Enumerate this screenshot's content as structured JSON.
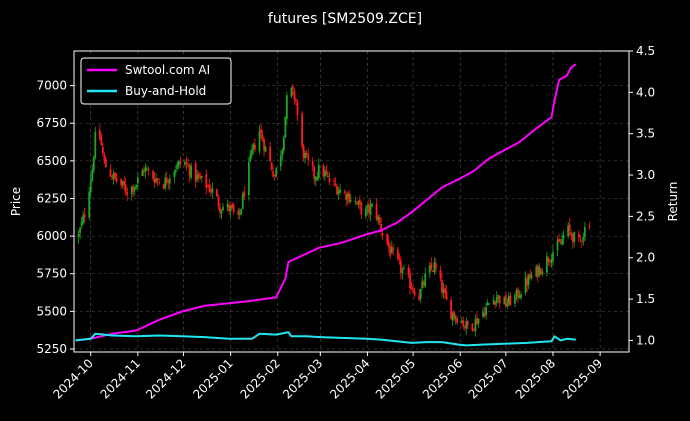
{
  "chart_data": {
    "type": "line",
    "title": "futures [SM2509.ZCE]",
    "ylabel_left": "Price",
    "ylabel_right": "Return",
    "x_ticks": [
      "2024-10",
      "2024-11",
      "2024-12",
      "2025-01",
      "2025-02",
      "2025-03",
      "2025-04",
      "2025-05",
      "2025-06",
      "2025-07",
      "2025-08",
      "2025-09"
    ],
    "x_tick_dates": [
      "2024-10-01",
      "2024-11-01",
      "2024-12-01",
      "2025-01-01",
      "2025-02-01",
      "2025-03-01",
      "2025-04-01",
      "2025-05-01",
      "2025-06-01",
      "2025-07-01",
      "2025-08-01",
      "2025-09-01"
    ],
    "x_range": [
      "2024-09-20",
      "2025-09-20"
    ],
    "ylim_left": [
      5230,
      7230
    ],
    "yticks_left": [
      5250,
      5500,
      5750,
      6000,
      6250,
      6500,
      6750,
      7000
    ],
    "ylim_right": [
      0.86,
      4.5
    ],
    "yticks_right": [
      1.0,
      1.5,
      2.0,
      2.5,
      3.0,
      3.5,
      4.0,
      4.5
    ],
    "grid": true,
    "legend_position": "upper-left",
    "colors": {
      "background": "#000000",
      "axis": "#ffffff",
      "grid": "#555555",
      "up_candle": "#1fa51f",
      "down_candle": "#ff1a1a",
      "strategy_line": "#ff00ff",
      "buyhold_line": "#22e5f2"
    },
    "price_path": [
      [
        "2024-09-23",
        6000
      ],
      [
        "2024-09-27",
        6150
      ],
      [
        "2024-10-02",
        6450
      ],
      [
        "2024-10-05",
        6750
      ],
      [
        "2024-10-08",
        6600
      ],
      [
        "2024-10-10",
        6480
      ],
      [
        "2024-10-15",
        6400
      ],
      [
        "2024-10-20",
        6350
      ],
      [
        "2024-10-25",
        6300
      ],
      [
        "2024-10-31",
        6350
      ],
      [
        "2024-11-05",
        6450
      ],
      [
        "2024-11-10",
        6400
      ],
      [
        "2024-11-18",
        6350
      ],
      [
        "2024-11-25",
        6450
      ],
      [
        "2024-12-01",
        6500
      ],
      [
        "2024-12-08",
        6400
      ],
      [
        "2024-12-15",
        6350
      ],
      [
        "2024-12-20",
        6300
      ],
      [
        "2024-12-25",
        6200
      ],
      [
        "2025-01-01",
        6180
      ],
      [
        "2025-01-06",
        6100
      ],
      [
        "2025-01-10",
        6300
      ],
      [
        "2025-01-15",
        6550
      ],
      [
        "2025-01-20",
        6700
      ],
      [
        "2025-01-25",
        6550
      ],
      [
        "2025-01-30",
        6400
      ],
      [
        "2025-02-04",
        6600
      ],
      [
        "2025-02-08",
        7000
      ],
      [
        "2025-02-13",
        6900
      ],
      [
        "2025-02-16",
        6600
      ],
      [
        "2025-02-20",
        6500
      ],
      [
        "2025-02-25",
        6400
      ],
      [
        "2025-03-01",
        6450
      ],
      [
        "2025-03-08",
        6350
      ],
      [
        "2025-03-15",
        6300
      ],
      [
        "2025-03-22",
        6250
      ],
      [
        "2025-03-30",
        6150
      ],
      [
        "2025-04-05",
        6200
      ],
      [
        "2025-04-10",
        6050
      ],
      [
        "2025-04-16",
        5900
      ],
      [
        "2025-04-22",
        5800
      ],
      [
        "2025-04-28",
        5700
      ],
      [
        "2025-05-05",
        5600
      ],
      [
        "2025-05-10",
        5750
      ],
      [
        "2025-05-15",
        5800
      ],
      [
        "2025-05-20",
        5650
      ],
      [
        "2025-05-25",
        5500
      ],
      [
        "2025-06-01",
        5450
      ],
      [
        "2025-06-05",
        5400
      ],
      [
        "2025-06-10",
        5420
      ],
      [
        "2025-06-15",
        5480
      ],
      [
        "2025-06-20",
        5550
      ],
      [
        "2025-06-25",
        5600
      ],
      [
        "2025-07-01",
        5550
      ],
      [
        "2025-07-08",
        5600
      ],
      [
        "2025-07-15",
        5700
      ],
      [
        "2025-07-20",
        5750
      ],
      [
        "2025-07-25",
        5800
      ],
      [
        "2025-08-01",
        5900
      ],
      [
        "2025-08-06",
        5950
      ],
      [
        "2025-08-10",
        6050
      ],
      [
        "2025-08-14",
        6000
      ],
      [
        "2025-08-18",
        5950
      ],
      [
        "2025-08-22",
        6050
      ],
      [
        "2025-08-25",
        6100
      ]
    ],
    "series": [
      {
        "name": "Swtool.com AI",
        "color": "#ff00ff",
        "points": [
          [
            "2024-09-21",
            1.0
          ],
          [
            "2024-10-01",
            1.02
          ],
          [
            "2024-10-15",
            1.08
          ],
          [
            "2024-10-31",
            1.12
          ],
          [
            "2024-11-15",
            1.25
          ],
          [
            "2024-11-30",
            1.35
          ],
          [
            "2024-12-15",
            1.42
          ],
          [
            "2024-12-31",
            1.45
          ],
          [
            "2025-01-15",
            1.48
          ],
          [
            "2025-01-31",
            1.52
          ],
          [
            "2025-02-06",
            1.75
          ],
          [
            "2025-02-08",
            1.95
          ],
          [
            "2025-02-20",
            2.05
          ],
          [
            "2025-02-28",
            2.12
          ],
          [
            "2025-03-15",
            2.18
          ],
          [
            "2025-03-31",
            2.28
          ],
          [
            "2025-04-10",
            2.33
          ],
          [
            "2025-04-20",
            2.42
          ],
          [
            "2025-04-30",
            2.55
          ],
          [
            "2025-05-10",
            2.7
          ],
          [
            "2025-05-20",
            2.85
          ],
          [
            "2025-05-31",
            2.95
          ],
          [
            "2025-06-10",
            3.05
          ],
          [
            "2025-06-20",
            3.2
          ],
          [
            "2025-06-30",
            3.3
          ],
          [
            "2025-07-10",
            3.4
          ],
          [
            "2025-07-20",
            3.55
          ],
          [
            "2025-07-31",
            3.7
          ],
          [
            "2025-08-02",
            3.9
          ],
          [
            "2025-08-05",
            4.15
          ],
          [
            "2025-08-10",
            4.2
          ],
          [
            "2025-08-13",
            4.3
          ],
          [
            "2025-08-16",
            4.34
          ]
        ]
      },
      {
        "name": "Buy-and-Hold",
        "color": "#22e5f2",
        "points": [
          [
            "2024-09-21",
            1.0
          ],
          [
            "2024-10-01",
            1.02
          ],
          [
            "2024-10-04",
            1.08
          ],
          [
            "2024-10-10",
            1.07
          ],
          [
            "2024-10-15",
            1.06
          ],
          [
            "2024-10-31",
            1.05
          ],
          [
            "2024-11-15",
            1.06
          ],
          [
            "2024-11-30",
            1.05
          ],
          [
            "2024-12-15",
            1.04
          ],
          [
            "2024-12-31",
            1.02
          ],
          [
            "2025-01-15",
            1.02
          ],
          [
            "2025-01-20",
            1.08
          ],
          [
            "2025-01-31",
            1.07
          ],
          [
            "2025-02-08",
            1.1
          ],
          [
            "2025-02-10",
            1.05
          ],
          [
            "2025-02-20",
            1.05
          ],
          [
            "2025-03-01",
            1.04
          ],
          [
            "2025-03-15",
            1.03
          ],
          [
            "2025-03-31",
            1.02
          ],
          [
            "2025-04-10",
            1.01
          ],
          [
            "2025-04-20",
            0.99
          ],
          [
            "2025-04-30",
            0.97
          ],
          [
            "2025-05-10",
            0.98
          ],
          [
            "2025-05-20",
            0.98
          ],
          [
            "2025-05-31",
            0.95
          ],
          [
            "2025-06-05",
            0.94
          ],
          [
            "2025-06-15",
            0.95
          ],
          [
            "2025-06-30",
            0.96
          ],
          [
            "2025-07-15",
            0.97
          ],
          [
            "2025-07-31",
            0.99
          ],
          [
            "2025-08-02",
            1.05
          ],
          [
            "2025-08-06",
            1.0
          ],
          [
            "2025-08-10",
            1.02
          ],
          [
            "2025-08-16",
            1.01
          ]
        ]
      }
    ]
  }
}
